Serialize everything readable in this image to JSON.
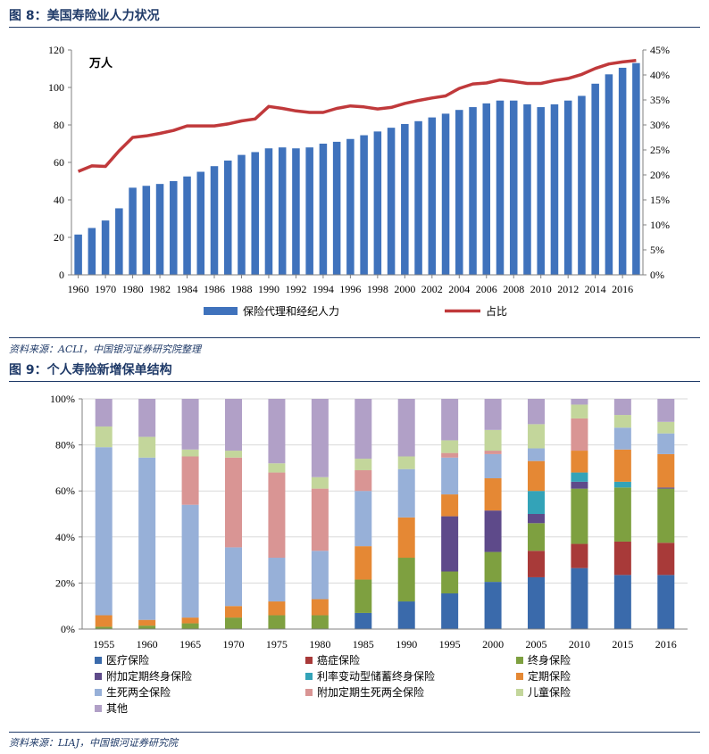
{
  "figure8": {
    "title": "图 8：美国寿险业人力状况",
    "source": "资料来源：ACLI，中国银河证券研究院整理",
    "chart_data": {
      "type": "bar+line",
      "unit_label": "万人",
      "years": [
        1960,
        1965,
        1970,
        1975,
        1980,
        1981,
        1982,
        1983,
        1984,
        1985,
        1986,
        1987,
        1988,
        1989,
        1990,
        1991,
        1992,
        1993,
        1994,
        1995,
        1996,
        1997,
        1998,
        1999,
        2000,
        2001,
        2002,
        2003,
        2004,
        2005,
        2006,
        2007,
        2008,
        2009,
        2010,
        2011,
        2012,
        2013,
        2014,
        2015,
        2016,
        2017
      ],
      "x_tick_labels": [
        "1960",
        "1970",
        "1980",
        "1982",
        "1984",
        "1986",
        "1988",
        "1990",
        "1992",
        "1994",
        "1996",
        "1998",
        "2000",
        "2002",
        "2004",
        "2006",
        "2008",
        "2010",
        "2012",
        "2014",
        "2016"
      ],
      "series": [
        {
          "name": "保险代理和经纪人力",
          "type": "bar",
          "axis": "left",
          "values": [
            21.5,
            25,
            29,
            35.5,
            46.5,
            47.5,
            48.5,
            50,
            52.5,
            55,
            58,
            61,
            64,
            65.5,
            67.5,
            68,
            67.5,
            68,
            70,
            71,
            72.5,
            74.5,
            76.5,
            78.5,
            80.5,
            82,
            84,
            86,
            88,
            89.5,
            91.5,
            93,
            93,
            91,
            89.5,
            91,
            93,
            95.5,
            102,
            107,
            110.5,
            113
          ]
        },
        {
          "name": "占比",
          "type": "line",
          "axis": "right",
          "values": [
            20.7,
            21.8,
            21.7,
            24.8,
            27.5,
            27.8,
            28.3,
            28.9,
            29.8,
            29.8,
            29.8,
            30.2,
            30.8,
            31.2,
            33.7,
            33.3,
            32.8,
            32.5,
            32.5,
            33.3,
            33.8,
            33.6,
            33.2,
            33.5,
            34.3,
            34.9,
            35.4,
            35.8,
            37.3,
            38.2,
            38.4,
            39.0,
            38.7,
            38.3,
            38.3,
            38.9,
            39.3,
            40.1,
            41.3,
            42.2,
            42.6,
            42.9
          ]
        }
      ],
      "left_axis": {
        "min": 0,
        "max": 120,
        "step": 20,
        "ticks": [
          "0",
          "20",
          "40",
          "60",
          "80",
          "100",
          "120"
        ]
      },
      "right_axis": {
        "min": 0,
        "max": 45,
        "step": 5,
        "ticks": [
          "0%",
          "5%",
          "10%",
          "15%",
          "20%",
          "25%",
          "30%",
          "35%",
          "40%",
          "45%"
        ]
      },
      "legend": [
        "保险代理和经纪人力",
        "占比"
      ],
      "colors": {
        "bar": "#3f72bc",
        "line": "#c0393b"
      }
    }
  },
  "figure9": {
    "title": "图 9：个人寿险新增保单结构",
    "source": "资料来源：LIAJ，中国银河证券研究院",
    "chart_data": {
      "type": "stacked-bar-100",
      "categories": [
        "1955",
        "1960",
        "1965",
        "1970",
        "1975",
        "1980",
        "1985",
        "1990",
        "1995",
        "2000",
        "2005",
        "2010",
        "2015",
        "2016"
      ],
      "y_ticks": [
        "0%",
        "20%",
        "40%",
        "60%",
        "80%",
        "100%"
      ],
      "series": [
        {
          "name": "医疗保险",
          "color": "#3a6aab",
          "values": [
            0,
            0,
            0,
            0,
            0,
            0,
            7,
            12,
            15.5,
            20.5,
            22.5,
            26.5,
            23.5,
            23.5
          ]
        },
        {
          "name": "癌症保险",
          "color": "#a83a39",
          "values": [
            0,
            0,
            0,
            0,
            0,
            0,
            0,
            0,
            0,
            0,
            11.5,
            10.5,
            14.5,
            14
          ]
        },
        {
          "name": "终身保险",
          "color": "#7ea040",
          "values": [
            1,
            1.5,
            2.5,
            5,
            6,
            6,
            14.5,
            19,
            9.5,
            13,
            12,
            24,
            23.5,
            23.5
          ]
        },
        {
          "name": "附加定期终身保险",
          "color": "#5e4a8a",
          "values": [
            0,
            0,
            0,
            0,
            0,
            0,
            0,
            0,
            24,
            18,
            4,
            3,
            0,
            0.5
          ]
        },
        {
          "name": "利率变动型储蓄终身保险",
          "color": "#33a3b8",
          "values": [
            0,
            0,
            0,
            0,
            0,
            0,
            0,
            0,
            0,
            0,
            10,
            4,
            2.5,
            0
          ]
        },
        {
          "name": "定期保险",
          "color": "#e58834",
          "values": [
            5,
            2.5,
            2.5,
            5,
            6,
            7,
            14.5,
            17.5,
            9.5,
            14,
            13,
            9.5,
            14,
            14.5
          ]
        },
        {
          "name": "生死两全保险",
          "color": "#97b0d8",
          "values": [
            73,
            70.5,
            49,
            25.5,
            19,
            21,
            24,
            21,
            16,
            10.5,
            5.5,
            0,
            9.5,
            9
          ]
        },
        {
          "name": "附加定期生死两全保险",
          "color": "#d99594",
          "values": [
            0,
            0,
            21,
            39,
            37,
            27,
            9,
            0,
            2,
            1.5,
            0,
            14,
            0,
            0
          ]
        },
        {
          "name": "儿童保险",
          "color": "#c3d69b",
          "values": [
            9,
            9,
            3,
            3,
            4,
            5,
            5,
            5.5,
            5.5,
            9,
            10.5,
            6,
            5.5,
            5
          ]
        },
        {
          "name": "其他",
          "color": "#b1a0c7",
          "values": [
            12,
            16.5,
            22,
            22.5,
            28,
            34,
            26,
            25,
            18,
            13.5,
            11,
            2.5,
            7,
            10
          ]
        }
      ],
      "legend_layout": "bottom, three columns"
    }
  }
}
